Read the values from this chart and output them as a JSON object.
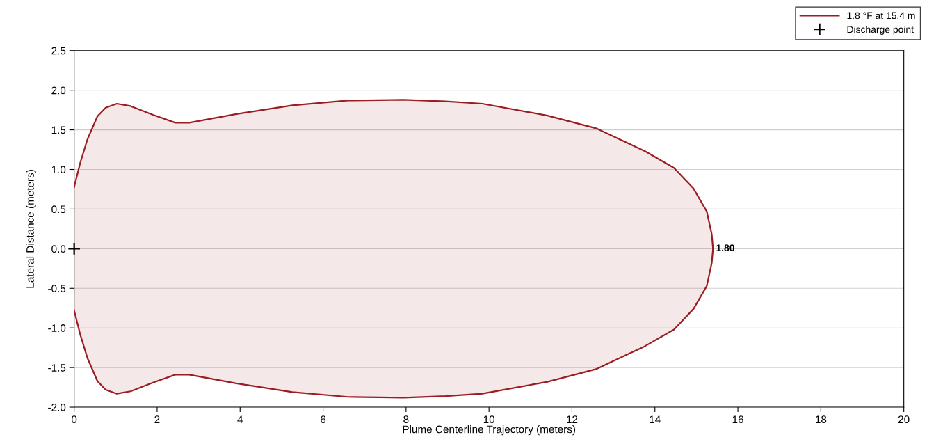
{
  "chart_data": {
    "type": "area",
    "xlabel": "Plume Centerline Trajectory (meters)",
    "ylabel": "Lateral Distance (meters)",
    "xlim": [
      0,
      20
    ],
    "ylim": [
      -2.0,
      2.5
    ],
    "xticks": [
      0,
      2,
      4,
      6,
      8,
      10,
      12,
      14,
      16,
      18,
      20
    ],
    "yticks": [
      {
        "value": -2.0,
        "label": "-2.0"
      },
      {
        "value": -1.5,
        "label": "-1.5"
      },
      {
        "value": -1.0,
        "label": "-1.0"
      },
      {
        "value": -0.5,
        "label": "-0.5"
      },
      {
        "value": 0,
        "label": "0.0"
      },
      {
        "value": 0.5,
        "label": "0.5"
      },
      {
        "value": 1.0,
        "label": "1.0"
      },
      {
        "value": 1.5,
        "label": "1.5"
      },
      {
        "value": 2.0,
        "label": "2.0"
      },
      {
        "value": 2.5,
        "label": "2.5"
      }
    ],
    "grid": "y",
    "legend": "top right",
    "series": [
      {
        "name": "1.8 °F at 15.4 m",
        "color": "#9b1c22",
        "x": [
          0,
          0.15,
          0.32,
          0.56,
          0.76,
          1.03,
          1.36,
          1.9,
          2.44,
          2.77,
          3.91,
          5.26,
          6.6,
          7.94,
          8.95,
          9.84,
          11.41,
          12.58,
          13.76,
          14.46,
          14.93,
          15.25,
          15.37,
          15.4
        ],
        "values": [
          0.78,
          1.09,
          1.38,
          1.67,
          1.78,
          1.83,
          1.8,
          1.69,
          1.59,
          1.59,
          1.7,
          1.81,
          1.87,
          1.88,
          1.86,
          1.83,
          1.68,
          1.52,
          1.23,
          1.02,
          0.76,
          0.47,
          0.18,
          0
        ]
      },
      {
        "color": "#9b1c22",
        "x": [
          0,
          0.15,
          0.32,
          0.56,
          0.76,
          1.03,
          1.36,
          1.9,
          2.44,
          2.77,
          3.91,
          5.26,
          6.6,
          7.94,
          8.95,
          9.84,
          11.41,
          12.58,
          13.76,
          14.46,
          14.93,
          15.25,
          15.37,
          15.4
        ],
        "values": [
          -0.78,
          -1.09,
          -1.38,
          -1.67,
          -1.78,
          -1.83,
          -1.8,
          -1.69,
          -1.59,
          -1.59,
          -1.7,
          -1.81,
          -1.87,
          -1.88,
          -1.86,
          -1.83,
          -1.68,
          -1.52,
          -1.23,
          -1.02,
          -0.76,
          -0.47,
          -0.18,
          0
        ]
      },
      {
        "name": "Discharge point",
        "type": "scatter",
        "color": "#000000",
        "marker": "cross",
        "x": [
          0
        ],
        "values": [
          0
        ]
      }
    ],
    "annotations": [
      {
        "text": "1.80",
        "x": 15.4,
        "y": 0
      }
    ]
  }
}
